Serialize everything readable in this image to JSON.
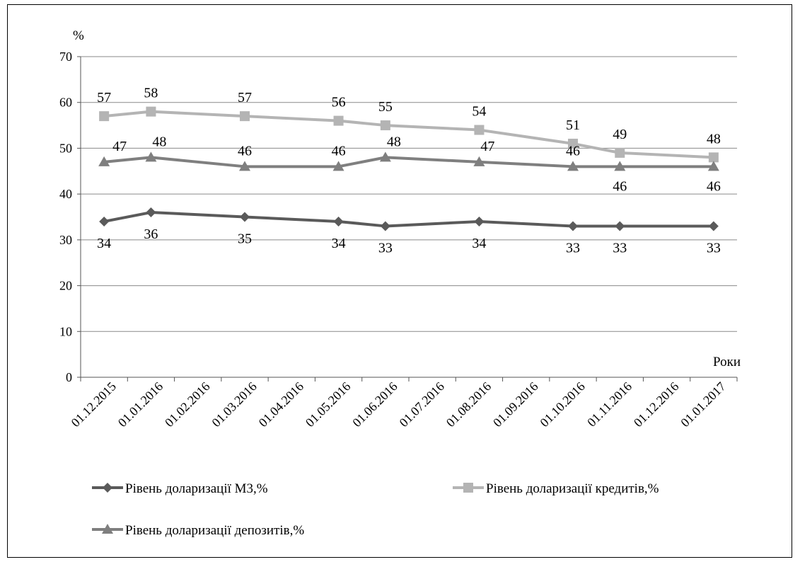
{
  "chart_data": {
    "type": "line",
    "title": "",
    "ylabel": "%",
    "xlabel": "Роки",
    "ylim": [
      0,
      70
    ],
    "yticks": [
      0,
      10,
      20,
      30,
      40,
      50,
      60,
      70
    ],
    "grid": "horizontal",
    "legend_position": "bottom",
    "categories": [
      "01.12.2015",
      "01.01.2016",
      "01.02.2016",
      "01.03.2016",
      "01.04.2016",
      "01.05.2016",
      "01.06.2016",
      "01.07.2016",
      "01.08.2016",
      "01.09.2016",
      "01.10.2016",
      "01.11.2016",
      "01.12.2016",
      "01.01.2017"
    ],
    "series": [
      {
        "name": "Рівень доларизації М3,%",
        "color": "#5a5a5a",
        "marker": "diamond",
        "label_position": "below",
        "points": [
          {
            "x": "01.12.2015",
            "y": 34
          },
          {
            "x": "01.01.2016",
            "y": 36
          },
          {
            "x": "01.03.2016",
            "y": 35
          },
          {
            "x": "01.05.2016",
            "y": 34
          },
          {
            "x": "01.06.2016",
            "y": 33
          },
          {
            "x": "01.08.2016",
            "y": 34
          },
          {
            "x": "01.10.2016",
            "y": 33
          },
          {
            "x": "01.11.2016",
            "y": 33
          },
          {
            "x": "01.01.2017",
            "y": 33
          }
        ]
      },
      {
        "name": "Рівень доларизації кредитів,%",
        "color": "#b4b4b4",
        "marker": "square",
        "label_position": "above",
        "points": [
          {
            "x": "01.12.2015",
            "y": 57
          },
          {
            "x": "01.01.2016",
            "y": 58
          },
          {
            "x": "01.03.2016",
            "y": 57
          },
          {
            "x": "01.05.2016",
            "y": 56
          },
          {
            "x": "01.06.2016",
            "y": 55
          },
          {
            "x": "01.08.2016",
            "y": 54
          },
          {
            "x": "01.10.2016",
            "y": 51
          },
          {
            "x": "01.11.2016",
            "y": 49
          },
          {
            "x": "01.01.2017",
            "y": 48
          }
        ]
      },
      {
        "name": "Рівень доларизації депозитів,%",
        "color": "#7f7f7f",
        "marker": "triangle",
        "label_position": "mixed",
        "points": [
          {
            "x": "01.12.2015",
            "y": 47
          },
          {
            "x": "01.01.2016",
            "y": 48
          },
          {
            "x": "01.03.2016",
            "y": 46
          },
          {
            "x": "01.05.2016",
            "y": 46
          },
          {
            "x": "01.06.2016",
            "y": 48
          },
          {
            "x": "01.08.2016",
            "y": 47
          },
          {
            "x": "01.10.2016",
            "y": 46
          },
          {
            "x": "01.11.2016",
            "y": 46
          },
          {
            "x": "01.01.2017",
            "y": 46
          }
        ]
      }
    ]
  }
}
